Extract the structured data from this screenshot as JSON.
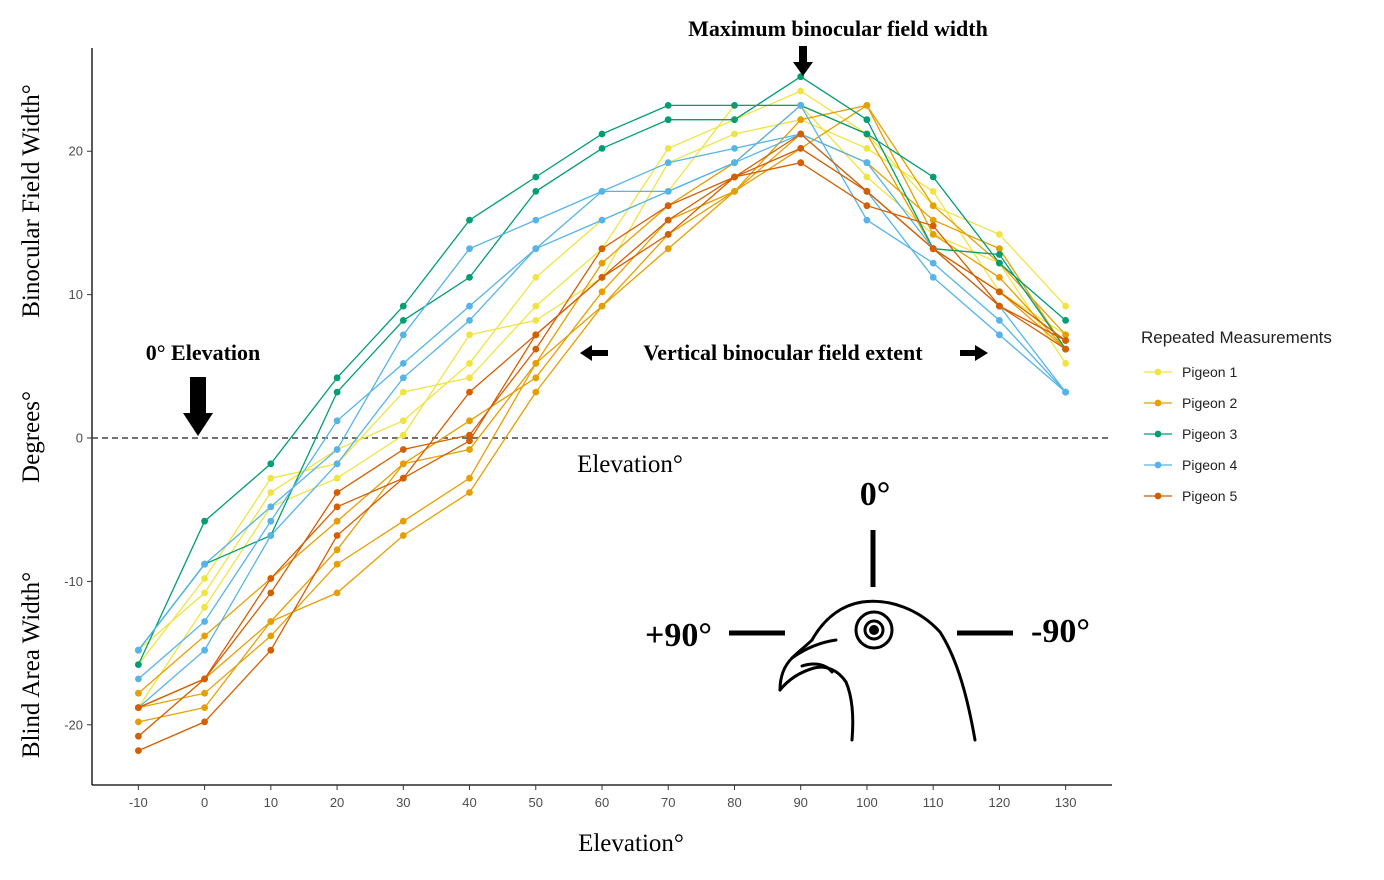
{
  "chart_data": {
    "type": "line",
    "title": "",
    "xlabel": "Elevation°",
    "ylabel_parts": [
      "Blind Area Width°",
      "Degrees°",
      "Binocular Field Width°"
    ],
    "x": [
      -10,
      0,
      10,
      20,
      30,
      40,
      50,
      60,
      70,
      80,
      90,
      100,
      110,
      120,
      130
    ],
    "xlim": [
      -17,
      137
    ],
    "ylim": [
      -24.2,
      27.2
    ],
    "yticks": [
      -20,
      -10,
      0,
      10,
      20
    ],
    "grid": false,
    "reference_line": {
      "y": 0,
      "style": "dashed",
      "label": "Elevation°"
    },
    "legend": {
      "title": "Repeated Measurements",
      "position": "right"
    },
    "series": [
      {
        "name": "Pigeon 1",
        "color": "#F0E442",
        "lines": [
          [
            -15.8,
            -9.8,
            -2.8,
            -1.8,
            3.2,
            4.2,
            9.2,
            13.2,
            20.2,
            22.2,
            24.2,
            21.2,
            16.2,
            14.2,
            9.2
          ],
          [
            -14.8,
            -10.8,
            -3.8,
            -0.8,
            1.2,
            5.2,
            11.2,
            15.2,
            17.2,
            23.2,
            23.2,
            18.2,
            14.2,
            12.2,
            5.2
          ],
          [
            -18.8,
            -11.8,
            -4.8,
            -2.8,
            0.2,
            7.2,
            8.2,
            11.2,
            19.2,
            21.2,
            22.2,
            20.2,
            17.2,
            10.2,
            7.2
          ]
        ]
      },
      {
        "name": "Pigeon 2",
        "color": "#E69F00",
        "lines": [
          [
            -17.8,
            -13.8,
            -9.8,
            -5.8,
            -1.8,
            1.2,
            4.2,
            10.2,
            15.2,
            17.2,
            20.2,
            23.2,
            16.2,
            12.2,
            7.2
          ],
          [
            -19.8,
            -18.8,
            -12.8,
            -10.8,
            -6.8,
            -3.8,
            3.2,
            9.2,
            13.2,
            17.2,
            21.2,
            19.2,
            15.2,
            13.2,
            6.2
          ],
          [
            -18.8,
            -17.8,
            -13.8,
            -8.8,
            -5.8,
            -2.8,
            5.2,
            9.2,
            14.2,
            17.2,
            22.2,
            23.2,
            14.2,
            11.2,
            6.2
          ],
          [
            -18.8,
            -16.8,
            -12.8,
            -7.8,
            -1.8,
            -0.8,
            5.2,
            12.2,
            16.2,
            19.2,
            23.2,
            21.2,
            13.2,
            10.2,
            6.2
          ]
        ]
      },
      {
        "name": "Pigeon 3",
        "color": "#009E73",
        "lines": [
          [
            -15.8,
            -5.8,
            -1.8,
            4.2,
            9.2,
            15.2,
            18.2,
            21.2,
            23.2,
            23.2,
            23.2,
            21.2,
            18.2,
            12.2,
            8.2
          ],
          [
            -14.8,
            -8.8,
            -6.8,
            3.2,
            8.2,
            11.2,
            17.2,
            20.2,
            22.2,
            22.2,
            25.2,
            22.2,
            13.2,
            12.8,
            6.2
          ]
        ]
      },
      {
        "name": "Pigeon 4",
        "color": "#56B4E9",
        "lines": [
          [
            -14.8,
            -8.8,
            -4.8,
            -0.8,
            7.2,
            13.2,
            15.2,
            17.2,
            19.2,
            20.2,
            21.2,
            19.2,
            13.2,
            9.2,
            3.2
          ],
          [
            -16.8,
            -12.8,
            -5.8,
            1.2,
            5.2,
            9.2,
            13.2,
            15.2,
            17.2,
            19.2,
            23.2,
            15.2,
            12.2,
            8.2,
            3.2
          ],
          [
            -18.8,
            -14.8,
            -6.8,
            -1.8,
            4.2,
            8.2,
            13.2,
            17.2,
            17.2,
            19.2,
            21.2,
            17.2,
            11.2,
            7.2,
            3.2
          ]
        ]
      },
      {
        "name": "Pigeon 5",
        "color": "#D55E00",
        "lines": [
          [
            -21.8,
            -19.8,
            -14.8,
            -6.8,
            -2.8,
            3.2,
            7.2,
            11.2,
            15.2,
            18.2,
            19.2,
            16.2,
            14.8,
            9.2,
            6.8
          ],
          [
            -20.8,
            -16.8,
            -10.8,
            -3.8,
            -0.8,
            0.2,
            6.2,
            13.2,
            16.2,
            18.2,
            20.2,
            17.2,
            13.2,
            10.2,
            6.8
          ],
          [
            -18.8,
            -16.8,
            -9.8,
            -4.8,
            -2.8,
            -0.2,
            7.2,
            11.2,
            14.2,
            18.2,
            21.2,
            17.2,
            13.2,
            9.2,
            6.2
          ]
        ]
      }
    ],
    "annotations": [
      {
        "text": "Maximum binocular field width",
        "x": 90,
        "arrow": "down"
      },
      {
        "text": "0° Elevation",
        "x": 0,
        "arrow": "down"
      },
      {
        "text": "Vertical binocular field extent",
        "arrow": "left-right"
      }
    ],
    "orientation_inset": {
      "icon": "pigeon-head-icon",
      "labels": {
        "top": "0°",
        "left": "+90°",
        "right": "-90°"
      }
    }
  }
}
